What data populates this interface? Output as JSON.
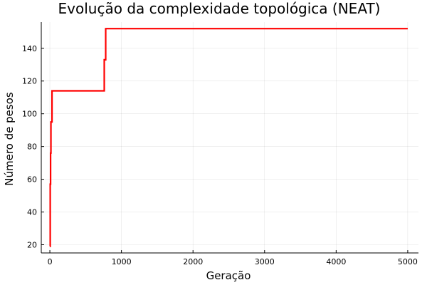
{
  "chart_data": {
    "type": "line",
    "title": "Evolução da complexidade topológica (NEAT)",
    "xlabel": "Geração",
    "ylabel": "Número de pesos",
    "xlim": [
      -120,
      5150
    ],
    "ylim": [
      15,
      156
    ],
    "xticks": [
      0,
      1000,
      2000,
      3000,
      4000,
      5000
    ],
    "xtick_labels": [
      "0",
      "1000",
      "2000",
      "3000",
      "4000",
      "5000"
    ],
    "yticks": [
      20,
      40,
      60,
      80,
      100,
      120,
      140
    ],
    "ytick_labels": [
      "20",
      "40",
      "60",
      "80",
      "100",
      "120",
      "140"
    ],
    "grid": true,
    "legend": "none",
    "color": "#ff0000",
    "series": [
      {
        "step": "post",
        "x": [
          0,
          5,
          10,
          15,
          20,
          30,
          760,
          780,
          5000
        ],
        "y": [
          19,
          57,
          76,
          95,
          95,
          114,
          133,
          152,
          152
        ]
      }
    ]
  }
}
